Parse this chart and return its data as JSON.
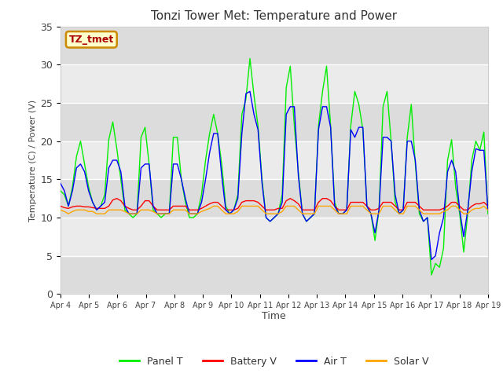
{
  "title": "Tonzi Tower Met: Temperature and Power",
  "xlabel": "Time",
  "ylabel": "Temperature (C) / Power (V)",
  "xlim": [
    0,
    15
  ],
  "ylim": [
    0,
    35
  ],
  "yticks": [
    0,
    5,
    10,
    15,
    20,
    25,
    30,
    35
  ],
  "xtick_labels": [
    "Apr 4",
    "Apr 5",
    "Apr 6",
    "Apr 7",
    "Apr 8",
    "Apr 9",
    "Apr 10",
    "Apr 11",
    "Apr 12",
    "Apr 13",
    "Apr 14",
    "Apr 15",
    "Apr 16",
    "Apr 17",
    "Apr 18",
    "Apr 19"
  ],
  "fig_color": "#ffffff",
  "plot_bg_light": "#f0f0f0",
  "plot_bg_dark": "#e0e0e0",
  "grid_color": "#ffffff",
  "legend_items": [
    "Panel T",
    "Battery V",
    "Air T",
    "Solar V"
  ],
  "legend_colors": [
    "#00ee00",
    "#ff0000",
    "#0000ff",
    "#ffa500"
  ],
  "label_box_text": "TZ_tmet",
  "label_box_facecolor": "#ffffcc",
  "label_box_edgecolor": "#cc8800",
  "label_box_textcolor": "#aa0000",
  "panel_t_color": "#00ee00",
  "battery_v_color": "#ff0000",
  "air_t_color": "#0000ff",
  "solar_v_color": "#ffa500",
  "panel_t": [
    13.5,
    13.0,
    11.5,
    14.0,
    18.0,
    20.0,
    17.0,
    14.0,
    12.0,
    11.0,
    11.5,
    13.0,
    20.2,
    22.5,
    19.0,
    15.0,
    11.0,
    10.5,
    10.0,
    10.5,
    20.5,
    21.8,
    17.0,
    11.0,
    10.5,
    10.0,
    10.5,
    10.5,
    20.5,
    20.5,
    15.0,
    12.0,
    10.0,
    10.0,
    10.5,
    13.0,
    17.5,
    21.0,
    23.5,
    21.0,
    17.0,
    11.5,
    10.5,
    11.0,
    13.0,
    23.5,
    25.5,
    30.8,
    26.0,
    22.0,
    15.0,
    10.0,
    9.5,
    10.0,
    10.5,
    13.0,
    27.0,
    29.8,
    22.0,
    16.0,
    10.5,
    9.5,
    10.0,
    10.5,
    22.0,
    26.5,
    29.8,
    22.0,
    12.0,
    10.5,
    10.5,
    11.0,
    22.0,
    26.5,
    24.8,
    21.5,
    11.5,
    10.5,
    7.0,
    11.0,
    24.5,
    26.5,
    20.0,
    12.0,
    10.5,
    11.0,
    20.5,
    24.8,
    17.0,
    10.5,
    9.5,
    10.0,
    2.5,
    4.0,
    3.5,
    6.0,
    17.5,
    20.2,
    14.0,
    10.5,
    5.5,
    10.5,
    17.5,
    20.0,
    18.8,
    21.2,
    10.5
  ],
  "battery_v": [
    11.5,
    11.3,
    11.2,
    11.4,
    11.5,
    11.5,
    11.4,
    11.4,
    11.3,
    11.2,
    11.2,
    11.2,
    11.5,
    12.3,
    12.5,
    12.2,
    11.5,
    11.2,
    11.0,
    11.0,
    11.5,
    12.2,
    12.2,
    11.5,
    11.0,
    11.0,
    11.0,
    11.0,
    11.5,
    11.5,
    11.5,
    11.5,
    11.0,
    11.0,
    11.0,
    11.2,
    11.5,
    11.8,
    12.0,
    12.0,
    11.5,
    11.0,
    11.0,
    11.0,
    11.2,
    12.0,
    12.2,
    12.2,
    12.2,
    12.0,
    11.5,
    11.0,
    11.0,
    11.0,
    11.2,
    11.2,
    12.2,
    12.5,
    12.2,
    11.8,
    11.0,
    11.0,
    11.0,
    11.0,
    12.0,
    12.5,
    12.5,
    12.2,
    11.5,
    11.0,
    11.0,
    11.0,
    12.0,
    12.0,
    12.0,
    12.0,
    11.5,
    11.0,
    11.0,
    11.2,
    12.0,
    12.0,
    12.0,
    11.5,
    11.0,
    11.0,
    12.0,
    12.0,
    12.0,
    11.5,
    11.0,
    11.0,
    11.0,
    11.0,
    11.0,
    11.2,
    11.5,
    12.0,
    12.0,
    11.5,
    11.0,
    11.0,
    11.5,
    11.8,
    11.8,
    12.0,
    11.5
  ],
  "air_t": [
    14.5,
    13.5,
    11.5,
    13.5,
    16.5,
    17.0,
    16.0,
    13.5,
    12.0,
    11.0,
    11.5,
    12.0,
    16.5,
    17.5,
    17.5,
    16.0,
    11.5,
    10.5,
    10.5,
    10.5,
    16.5,
    17.0,
    17.0,
    11.5,
    10.5,
    10.5,
    10.5,
    10.5,
    17.0,
    17.0,
    15.0,
    12.5,
    10.5,
    10.5,
    10.5,
    12.0,
    15.0,
    18.5,
    21.0,
    21.0,
    15.5,
    11.0,
    10.5,
    11.0,
    12.5,
    21.0,
    26.2,
    26.5,
    23.5,
    21.5,
    14.5,
    10.0,
    9.5,
    10.0,
    10.5,
    12.0,
    23.5,
    24.5,
    24.5,
    15.5,
    10.5,
    9.5,
    10.0,
    10.5,
    21.5,
    24.5,
    24.5,
    21.8,
    11.5,
    10.5,
    10.5,
    11.0,
    21.5,
    20.5,
    21.8,
    21.8,
    11.5,
    10.5,
    8.0,
    11.0,
    20.5,
    20.5,
    20.0,
    13.0,
    10.5,
    11.0,
    20.0,
    20.0,
    17.5,
    11.0,
    9.5,
    10.0,
    4.5,
    5.0,
    8.0,
    10.0,
    16.0,
    17.5,
    16.0,
    11.0,
    7.5,
    11.0,
    16.0,
    19.0,
    18.8,
    18.8,
    11.0
  ],
  "solar_v": [
    11.0,
    10.8,
    10.5,
    10.8,
    11.0,
    11.0,
    11.0,
    10.8,
    10.8,
    10.5,
    10.5,
    10.5,
    11.0,
    11.0,
    11.0,
    11.0,
    10.8,
    10.5,
    10.5,
    10.5,
    11.0,
    11.0,
    11.0,
    10.8,
    10.5,
    10.5,
    10.5,
    10.5,
    11.0,
    11.0,
    11.0,
    11.0,
    10.5,
    10.5,
    10.5,
    10.8,
    11.0,
    11.2,
    11.5,
    11.5,
    11.0,
    10.5,
    10.5,
    10.5,
    10.8,
    11.5,
    11.5,
    11.5,
    11.5,
    11.5,
    11.0,
    10.5,
    10.5,
    10.5,
    10.5,
    10.8,
    11.5,
    11.5,
    11.5,
    11.0,
    10.5,
    10.5,
    10.5,
    10.5,
    11.5,
    11.5,
    11.5,
    11.5,
    11.0,
    10.5,
    10.5,
    10.5,
    11.5,
    11.5,
    11.5,
    11.5,
    11.0,
    10.5,
    10.5,
    10.5,
    11.5,
    11.5,
    11.5,
    11.0,
    10.5,
    10.5,
    11.5,
    11.5,
    11.5,
    11.0,
    10.5,
    10.5,
    10.5,
    10.5,
    10.5,
    10.8,
    11.0,
    11.5,
    11.5,
    11.0,
    10.5,
    10.5,
    11.0,
    11.2,
    11.2,
    11.5,
    11.0
  ],
  "band_colors": [
    "#dcdcdc",
    "#ebebeb",
    "#dcdcdc",
    "#ebebeb",
    "#dcdcdc",
    "#ebebeb",
    "#dcdcdc"
  ],
  "band_edges": [
    0,
    5,
    10,
    15,
    20,
    25,
    30,
    35
  ]
}
